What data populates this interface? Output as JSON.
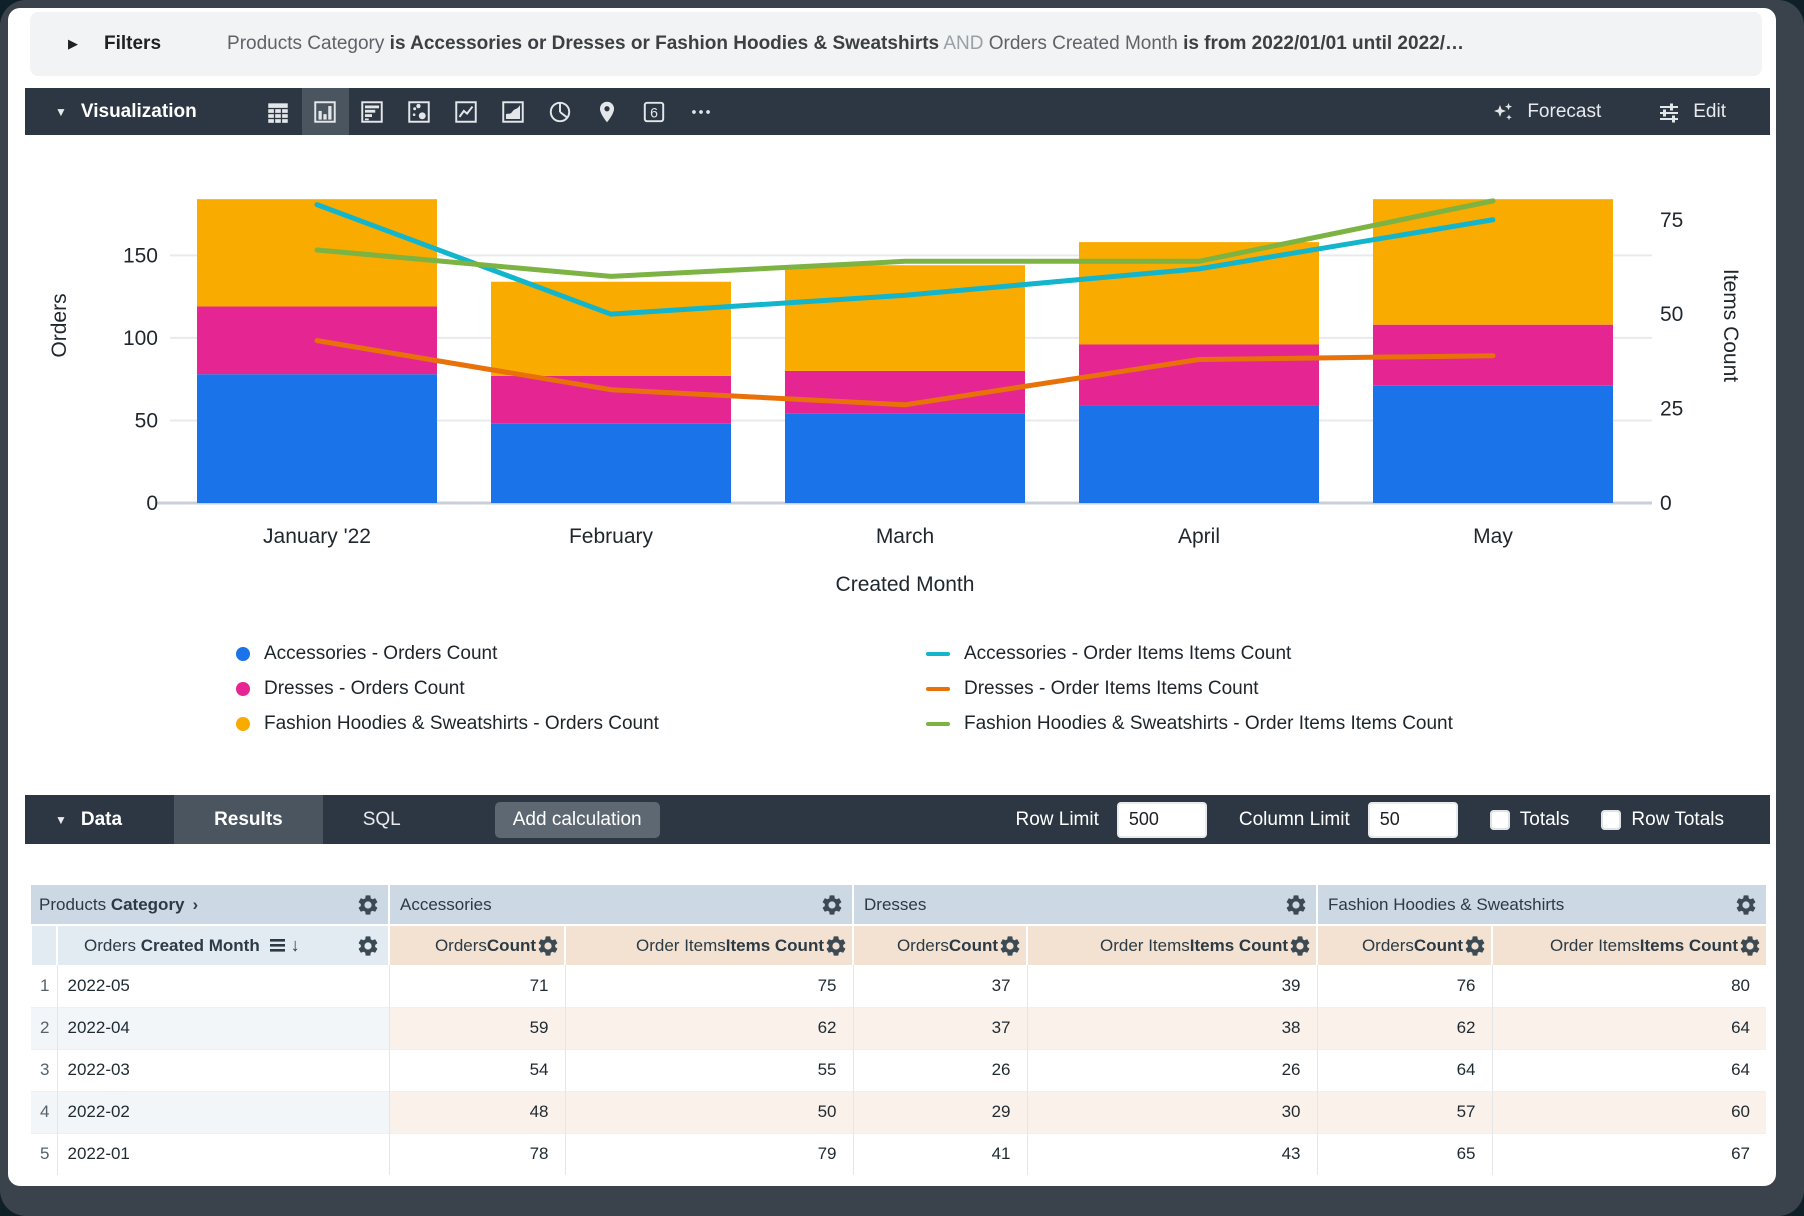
{
  "filters_bar": {
    "label": "Filters",
    "segments": [
      {
        "text": "Products Category ",
        "style": "field"
      },
      {
        "text": "is Accessories or Dresses or Fashion Hoodies & Sweatshirts",
        "style": "value"
      },
      {
        "text": " AND ",
        "style": "conj"
      },
      {
        "text": "Orders Created Month ",
        "style": "field"
      },
      {
        "text": "is from 2022/01/01 until 2022/…",
        "style": "value"
      }
    ]
  },
  "viz_toolbar": {
    "title": "Visualization",
    "icons": [
      {
        "name": "table",
        "selected": false
      },
      {
        "name": "column-chart",
        "selected": true
      },
      {
        "name": "bar-chart",
        "selected": false
      },
      {
        "name": "scatter",
        "selected": false
      },
      {
        "name": "line-chart",
        "selected": false
      },
      {
        "name": "area-chart",
        "selected": false
      },
      {
        "name": "pie-chart",
        "selected": false
      },
      {
        "name": "map",
        "selected": false
      },
      {
        "name": "single-value",
        "selected": false,
        "glyph": "6"
      },
      {
        "name": "more",
        "selected": false
      }
    ],
    "forecast_label": "Forecast",
    "edit_label": "Edit"
  },
  "chart_data": {
    "type": "combo: stacked bar + line",
    "categories": [
      "January '22",
      "February",
      "March",
      "April",
      "May"
    ],
    "bar_series": [
      {
        "name": "Accessories - Orders Count",
        "color": "#1A73E8",
        "values": [
          78,
          48,
          54,
          59,
          71
        ]
      },
      {
        "name": "Dresses - Orders Count",
        "color": "#E52592",
        "values": [
          41,
          29,
          26,
          37,
          37
        ]
      },
      {
        "name": "Fashion Hoodies & Sweatshirts - Orders Count",
        "color": "#F9AB00",
        "values": [
          65,
          57,
          64,
          62,
          76
        ]
      }
    ],
    "line_series": [
      {
        "name": "Accessories - Order Items Items Count",
        "color": "#12B5CB",
        "values": [
          79,
          50,
          55,
          62,
          75
        ]
      },
      {
        "name": "Dresses - Order Items Items Count",
        "color": "#E8710A",
        "values": [
          43,
          30,
          26,
          38,
          39
        ]
      },
      {
        "name": "Fashion Hoodies & Sweatshirts - Order Items Items Count",
        "color": "#7CB342",
        "values": [
          67,
          60,
          64,
          64,
          80
        ]
      }
    ],
    "left_axis": {
      "label": "Orders",
      "ticks": [
        0,
        50,
        100,
        150
      ],
      "max": 215
    },
    "right_axis": {
      "label": "Items Count",
      "ticks": [
        0,
        25,
        50,
        75
      ],
      "max": 94
    },
    "xlabel": "Created Month",
    "grid": true,
    "legend_position": "bottom"
  },
  "data_toolbar": {
    "title": "Data",
    "tabs": [
      {
        "label": "Results",
        "active": true
      },
      {
        "label": "SQL",
        "active": false
      }
    ],
    "add_calculation_label": "Add calculation",
    "row_limit_label": "Row Limit",
    "row_limit_value": "500",
    "column_limit_label": "Column Limit",
    "column_limit_value": "50",
    "totals_label": "Totals",
    "row_totals_label": "Row Totals",
    "totals_checked": false,
    "row_totals_checked": false
  },
  "table": {
    "pivot_dim": {
      "normal": "Products",
      "bold": "Category"
    },
    "groups": [
      "Accessories",
      "Dresses",
      "Fashion Hoodies & Sweatshirts"
    ],
    "dim_header": {
      "normal": "Orders",
      "bold": "Created Month"
    },
    "measures": [
      {
        "normal": "Orders ",
        "bold": "Count"
      },
      {
        "normal": "Order Items ",
        "bold": "Items Count"
      }
    ],
    "rows": [
      {
        "num": "1",
        "month": "2022-05",
        "values": [
          "71",
          "75",
          "37",
          "39",
          "76",
          "80"
        ]
      },
      {
        "num": "2",
        "month": "2022-04",
        "values": [
          "59",
          "62",
          "37",
          "38",
          "62",
          "64"
        ]
      },
      {
        "num": "3",
        "month": "2022-03",
        "values": [
          "54",
          "55",
          "26",
          "26",
          "64",
          "64"
        ]
      },
      {
        "num": "4",
        "month": "2022-02",
        "values": [
          "48",
          "50",
          "29",
          "30",
          "57",
          "60"
        ]
      },
      {
        "num": "5",
        "month": "2022-01",
        "values": [
          "78",
          "79",
          "41",
          "43",
          "65",
          "67"
        ]
      }
    ]
  },
  "theme": {
    "toolbar_bg": "#2C3743",
    "active_tab_bg": "#4A5560",
    "pivot_header_bg": "#CCD9E4",
    "dim_header_bg": "#E2EBF2",
    "measure_header_bg": "#F3E2D1",
    "even_row_dim_bg": "#F2F6F9",
    "even_row_measure_bg": "#F9F1EA"
  }
}
